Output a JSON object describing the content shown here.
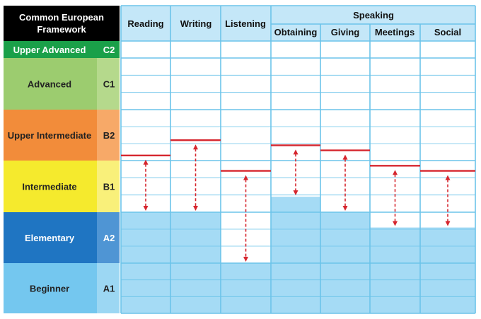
{
  "framework_header": {
    "line1": "Common European",
    "line2": "Framework"
  },
  "columns": {
    "reading": "Reading",
    "writing": "Writing",
    "listening": "Listening",
    "speaking": "Speaking",
    "obtaining": "Obtaining",
    "giving": "Giving",
    "meetings": "Meetings",
    "social": "Social"
  },
  "levels": [
    {
      "name": "Upper Advanced",
      "code": "C2",
      "color": "#1aa049",
      "code_color": "#1aa049",
      "text_color": "#ffffff"
    },
    {
      "name": "Advanced",
      "code": "C1",
      "color": "#9ccc6f",
      "code_color": "#b5d98c",
      "text_color": "#222222"
    },
    {
      "name": "Upper Intermediate",
      "code": "B2",
      "color": "#f28c3a",
      "code_color": "#f7a968",
      "text_color": "#222222"
    },
    {
      "name": "Intermediate",
      "code": "B1",
      "color": "#f5ea2d",
      "code_color": "#f9f07a",
      "text_color": "#222222"
    },
    {
      "name": "Elementary",
      "code": "A2",
      "color": "#1f75c2",
      "code_color": "#4f95d4",
      "text_color": "#ffffff"
    },
    {
      "name": "Beginner",
      "code": "A1",
      "color": "#74c7ef",
      "code_color": "#9cd7f3",
      "text_color": "#222222"
    }
  ],
  "chart_data": {
    "type": "bar",
    "categories": [
      "Reading",
      "Writing",
      "Listening",
      "Obtaining",
      "Giving",
      "Meetings",
      "Social"
    ],
    "series": [
      {
        "values": [
          2.0,
          2.0,
          1.0,
          2.3,
          2.0,
          1.7,
          1.7
        ]
      },
      {
        "values": [
          3.1,
          3.4,
          2.8,
          3.3,
          3.2,
          2.9,
          2.8
        ]
      }
    ],
    "ylim": [
      0,
      6
    ],
    "colors": {
      "fill": "#a5dbf5",
      "target_line": "#d6262e",
      "grid": "#6cc4ea"
    }
  }
}
